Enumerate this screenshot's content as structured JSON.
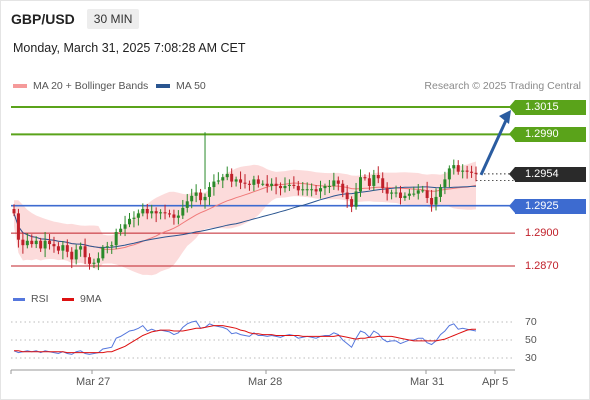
{
  "header": {
    "symbol": "GBP/USD",
    "timeframe": "30 MIN"
  },
  "datetime": "Monday, March 31, 2025 7:08:28 AM CET",
  "credit": "Research © 2025 Trading Central",
  "legend": {
    "ma20": "MA 20 + Bollinger Bands",
    "ma50": "MA 50",
    "rsi": "RSI",
    "ma9": "9MA"
  },
  "colors": {
    "up": "#2a8a2a",
    "down": "#c0202a",
    "level_green": "#5aa31a",
    "level_blue": "#3d6bd0",
    "level_red": "#c0202a",
    "bollinger": "#fbd5d5",
    "ma20": "#f07a7a",
    "ma50": "#2a5590",
    "rsi": "#5577dd",
    "rsi_ma": "#dd1111",
    "arrow": "#2a5ca0",
    "current": "#2a2a2a"
  },
  "levels": {
    "r2": "1.3015",
    "r1": "1.2990",
    "current": "1.2954",
    "s1": "1.2925",
    "s2": "1.2900",
    "s3": "1.2870"
  },
  "chart_data": [
    {
      "type": "candlestick",
      "title": "GBP/USD",
      "x_labels": [
        "Mar 27",
        "Mar 28",
        "Mar 31",
        "Apr 5"
      ],
      "y_range": [
        1.2853,
        1.3045
      ],
      "levels": [
        1.3015,
        1.299,
        1.2954,
        1.2925,
        1.29,
        1.287
      ],
      "projection": {
        "from": 1.2954,
        "to": 1.3015
      },
      "series": [
        {
          "name": "GBP/USD",
          "close": [
            1.2918,
            1.2894,
            1.2889,
            1.2893,
            1.289,
            1.2893,
            1.2886,
            1.2893,
            1.289,
            1.2888,
            1.2884,
            1.2889,
            1.2883,
            1.2876,
            1.2885,
            1.2888,
            1.2878,
            1.2872,
            1.2873,
            1.2877,
            1.2887,
            1.2888,
            1.2889,
            1.2901,
            1.2904,
            1.2908,
            1.2913,
            1.2914,
            1.2918,
            1.2922,
            1.2918,
            1.292,
            1.2918,
            1.2919,
            1.2918,
            1.2917,
            1.2914,
            1.2916,
            1.2923,
            1.2929,
            1.2934,
            1.2937,
            1.293,
            1.2933,
            1.2942,
            1.2947,
            1.2948,
            1.2951,
            1.2954,
            1.2947,
            1.2949,
            1.2946,
            1.2945,
            1.2944,
            1.2949,
            1.2945,
            1.2945,
            1.2943,
            1.2945,
            1.2943,
            1.2941,
            1.2943,
            1.2944,
            1.2943,
            1.2939,
            1.294,
            1.294,
            1.294,
            1.2938,
            1.2941,
            1.2943,
            1.2943,
            1.2948,
            1.2945,
            1.2937,
            1.2931,
            1.2924,
            1.2938,
            1.2951,
            1.295,
            1.2943,
            1.2953,
            1.295,
            1.2941,
            1.2936,
            1.2937,
            1.2937,
            1.2932,
            1.2934,
            1.2936,
            1.2936,
            1.2939,
            1.2939,
            1.2932,
            1.2926,
            1.2933,
            1.2942,
            1.2949,
            1.2959,
            1.2962,
            1.2956,
            1.2957,
            1.2956,
            1.2955,
            1.2954
          ]
        }
      ]
    },
    {
      "type": "line",
      "title": "RSI",
      "y_ticks": [
        30,
        50,
        70
      ],
      "series": [
        {
          "name": "RSI",
          "values": [
            38,
            36,
            37,
            38,
            37,
            38,
            36,
            38,
            37,
            36,
            35,
            37,
            35,
            34,
            37,
            38,
            35,
            34,
            35,
            36,
            40,
            41,
            42,
            52,
            54,
            57,
            60,
            61,
            63,
            66,
            60,
            62,
            60,
            61,
            60,
            59,
            56,
            58,
            64,
            68,
            70,
            71,
            63,
            64,
            68,
            66,
            65,
            64,
            62,
            57,
            58,
            56,
            55,
            54,
            58,
            55,
            55,
            54,
            55,
            54,
            53,
            55,
            56,
            55,
            52,
            53,
            54,
            53,
            52,
            54,
            55,
            55,
            58,
            56,
            50,
            46,
            42,
            52,
            60,
            58,
            53,
            60,
            57,
            51,
            48,
            49,
            49,
            46,
            48,
            50,
            50,
            52,
            52,
            47,
            45,
            49,
            56,
            60,
            66,
            68,
            62,
            63,
            62,
            61,
            60
          ]
        },
        {
          "name": "9MA",
          "values": [
            38,
            38,
            37,
            37,
            37,
            37,
            37,
            37,
            37,
            37,
            37,
            37,
            36,
            36,
            36,
            36,
            36,
            36,
            36,
            36,
            36,
            37,
            37,
            39,
            41,
            43,
            46,
            49,
            52,
            55,
            57,
            59,
            60,
            61,
            61,
            61,
            60,
            60,
            60,
            61,
            62,
            63,
            63,
            64,
            65,
            66,
            66,
            66,
            65,
            64,
            63,
            61,
            60,
            58,
            57,
            57,
            56,
            56,
            56,
            55,
            55,
            55,
            55,
            55,
            55,
            54,
            54,
            54,
            54,
            54,
            54,
            54,
            54,
            55,
            54,
            53,
            52,
            51,
            52,
            52,
            53,
            53,
            54,
            54,
            54,
            54,
            53,
            52,
            51,
            50,
            49,
            49,
            49,
            49,
            49,
            49,
            50,
            51,
            53,
            55,
            57,
            59,
            61,
            62,
            62
          ]
        }
      ]
    }
  ]
}
